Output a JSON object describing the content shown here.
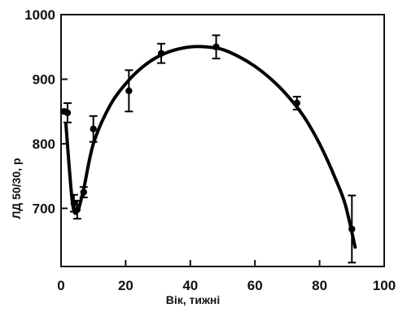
{
  "chart_data": {
    "type": "scatter",
    "title": "",
    "xlabel": "Вік, тижні",
    "ylabel": "ЛД 50/30, р",
    "xlim": [
      0,
      100
    ],
    "ylim": [
      610,
      1000
    ],
    "x_ticks": [
      0,
      20,
      40,
      60,
      80,
      100
    ],
    "y_ticks": [
      700,
      800,
      900,
      1000
    ],
    "grid": false,
    "legend": "none",
    "points": [
      {
        "x": 1,
        "y": 850,
        "err": 0
      },
      {
        "x": 2,
        "y": 848,
        "err": 15
      },
      {
        "x": 4,
        "y": 708,
        "err": 13
      },
      {
        "x": 5,
        "y": 698,
        "err": 14
      },
      {
        "x": 7,
        "y": 725,
        "err": 8
      },
      {
        "x": 10,
        "y": 823,
        "err": 20
      },
      {
        "x": 21,
        "y": 882,
        "err": 32
      },
      {
        "x": 31,
        "y": 940,
        "err": 15
      },
      {
        "x": 48,
        "y": 950,
        "err": 18
      },
      {
        "x": 73,
        "y": 863,
        "err": 10
      },
      {
        "x": 90,
        "y": 668,
        "err": 52
      }
    ],
    "fit_curve": [
      {
        "x": 1.5,
        "y": 830
      },
      {
        "x": 3.5,
        "y": 710
      },
      {
        "x": 5,
        "y": 695
      },
      {
        "x": 7,
        "y": 730
      },
      {
        "x": 10,
        "y": 800
      },
      {
        "x": 15,
        "y": 858
      },
      {
        "x": 20,
        "y": 893
      },
      {
        "x": 25,
        "y": 918
      },
      {
        "x": 30,
        "y": 935
      },
      {
        "x": 35,
        "y": 945
      },
      {
        "x": 40,
        "y": 950
      },
      {
        "x": 45,
        "y": 950
      },
      {
        "x": 50,
        "y": 946
      },
      {
        "x": 55,
        "y": 935
      },
      {
        "x": 60,
        "y": 920
      },
      {
        "x": 65,
        "y": 900
      },
      {
        "x": 70,
        "y": 875
      },
      {
        "x": 75,
        "y": 843
      },
      {
        "x": 80,
        "y": 800
      },
      {
        "x": 85,
        "y": 745
      },
      {
        "x": 88,
        "y": 705
      },
      {
        "x": 91,
        "y": 640
      }
    ]
  }
}
